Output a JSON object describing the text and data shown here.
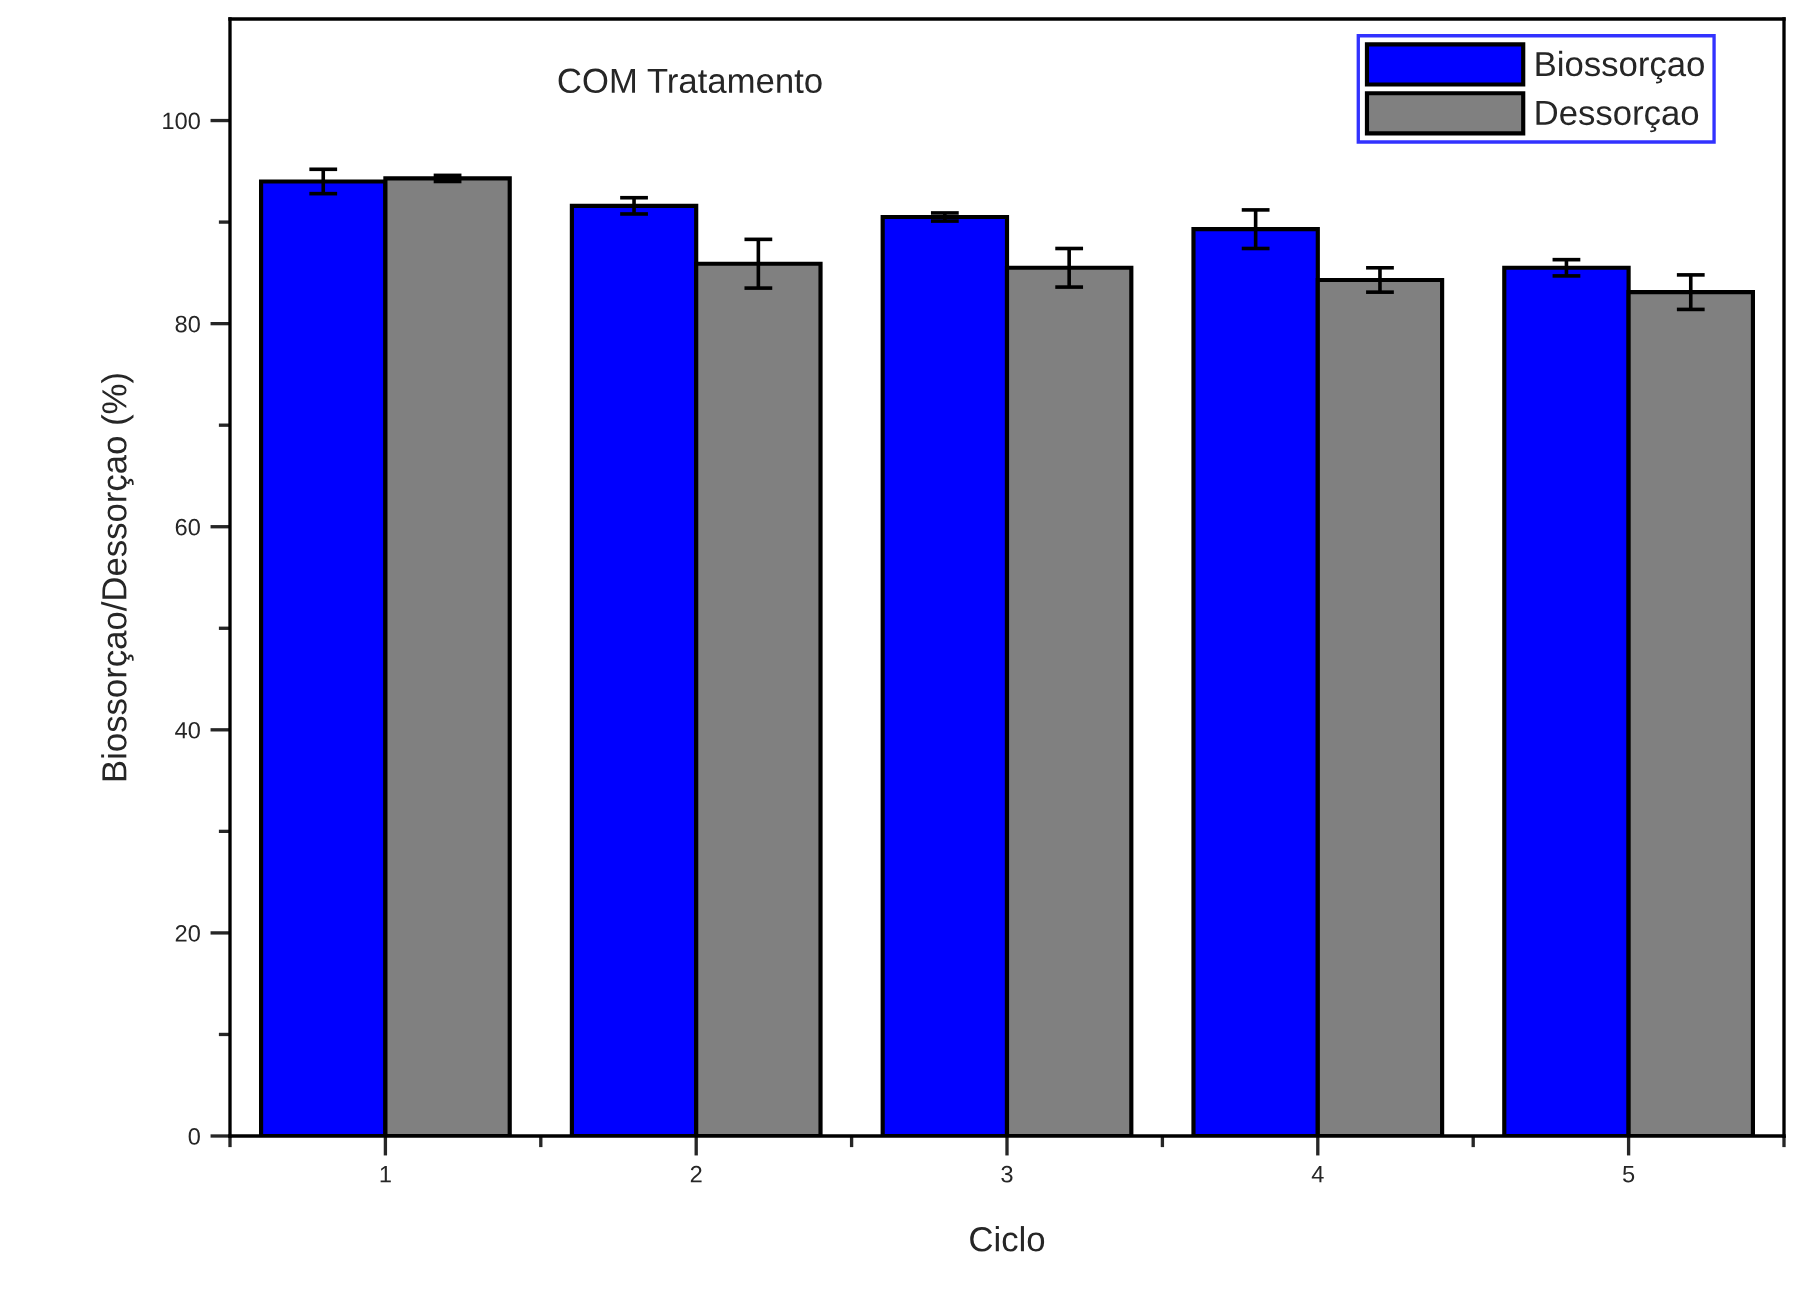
{
  "chart_data": {
    "type": "bar",
    "title": "COM Tratamento",
    "xlabel": "Ciclo",
    "ylabel": "Biossorçao/Dessorçao (%)",
    "categories": [
      "1",
      "2",
      "3",
      "4",
      "5"
    ],
    "series": [
      {
        "name": "Biossorçao",
        "color": "#0000ff",
        "values": [
          94.0,
          91.6,
          90.5,
          89.3,
          85.5
        ],
        "errors": [
          1.2,
          0.8,
          0.4,
          1.9,
          0.8
        ]
      },
      {
        "name": "Dessorçao",
        "color": "#808080",
        "values": [
          94.3,
          85.9,
          85.5,
          84.3,
          83.1
        ],
        "errors": [
          0.3,
          2.4,
          1.9,
          1.2,
          1.7
        ]
      }
    ],
    "ylim": [
      0,
      110
    ],
    "yticks": [
      0,
      20,
      40,
      60,
      80,
      100
    ],
    "legend": "top right"
  }
}
